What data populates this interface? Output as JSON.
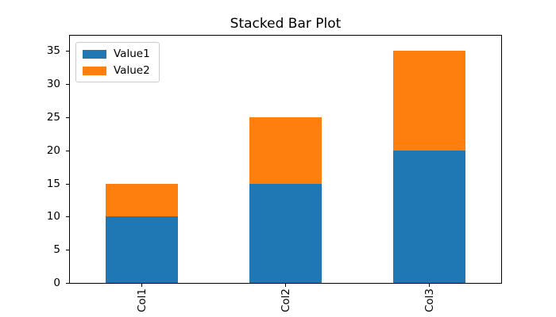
{
  "chart_data": {
    "type": "bar",
    "stacked": true,
    "title": "Stacked Bar Plot",
    "categories": [
      "Col1",
      "Col2",
      "Col3"
    ],
    "series": [
      {
        "name": "Value1",
        "color": "#1f77b4",
        "values": [
          10,
          15,
          20
        ]
      },
      {
        "name": "Value2",
        "color": "#ff7f0e",
        "values": [
          5,
          10,
          15
        ]
      }
    ],
    "xlabel": "",
    "ylabel": "",
    "ylim": [
      0,
      37.3
    ],
    "yticks": [
      0,
      5,
      10,
      15,
      20,
      25,
      30,
      35
    ],
    "xtick_rotation": 90,
    "legend_position": "upper left",
    "grid": false,
    "background_color": "#ffffff",
    "axis_color": "#000000"
  }
}
